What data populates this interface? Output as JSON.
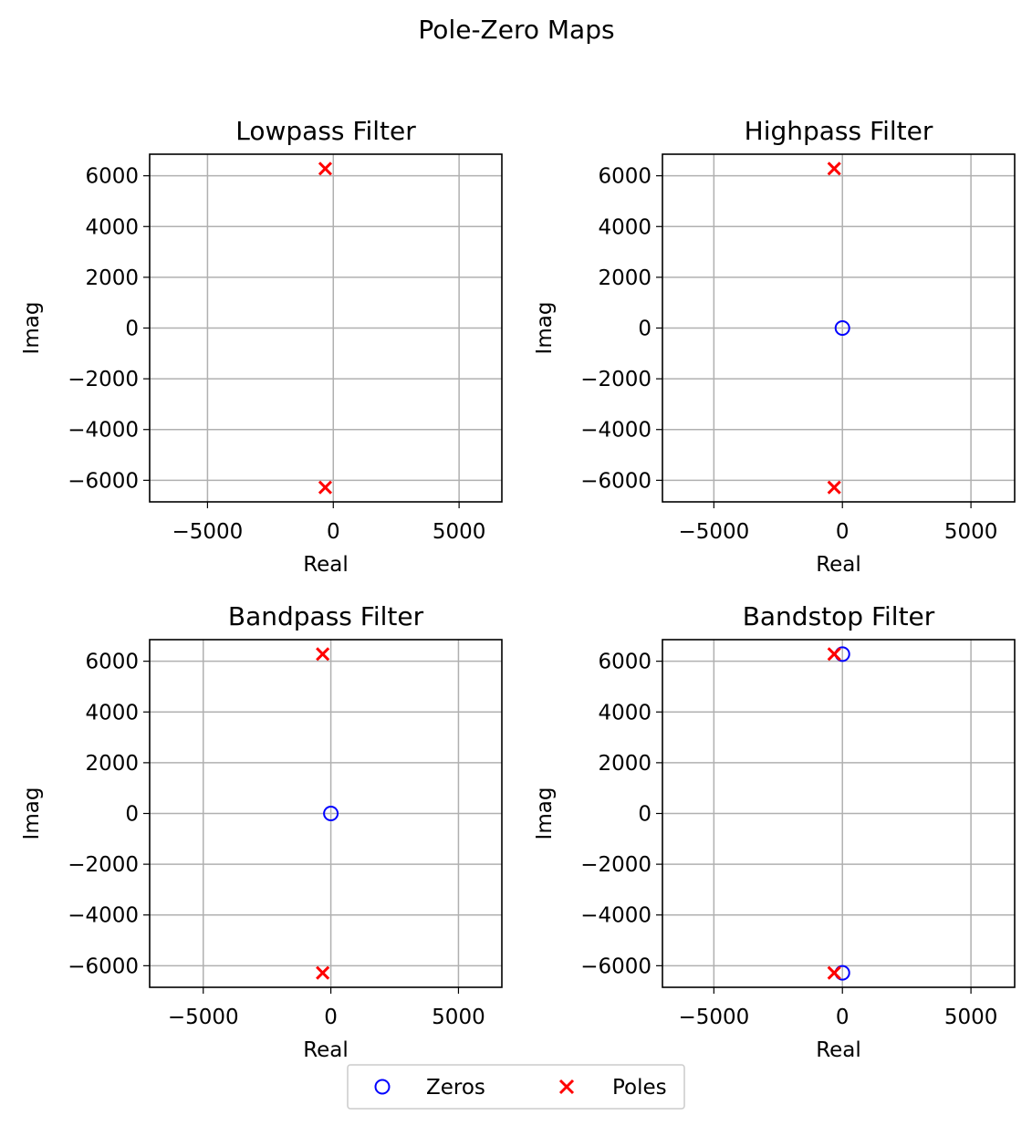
{
  "figure": {
    "title": "Pole-Zero Maps"
  },
  "legend": {
    "placement": "bottom-center",
    "entries": [
      {
        "label": "Zeros",
        "marker": "circle",
        "color": "#0000ff"
      },
      {
        "label": "Poles",
        "marker": "x",
        "color": "#ff0000"
      }
    ]
  },
  "colors": {
    "zeros": "#0000ff",
    "poles": "#ff0000",
    "grid": "#b0b0b0"
  },
  "chart_data": [
    {
      "type": "scatter",
      "title": "Lowpass Filter",
      "xlabel": "Real",
      "ylabel": "Imag",
      "xlim": [
        -7300,
        6700
      ],
      "ylim": [
        -6850,
        6850
      ],
      "xticks": [
        -5000,
        0,
        5000
      ],
      "xtick_labels": [
        "−5000",
        "0",
        "5000"
      ],
      "yticks": [
        6000,
        4000,
        2000,
        0,
        -2000,
        -4000,
        -6000
      ],
      "ytick_labels": [
        "6000",
        "4000",
        "2000",
        "0",
        "−2000",
        "−4000",
        "−6000"
      ],
      "grid": true,
      "series": [
        {
          "name": "Zeros",
          "points": []
        },
        {
          "name": "Poles",
          "points": [
            [
              -320,
              6280
            ],
            [
              -320,
              -6280
            ]
          ]
        }
      ]
    },
    {
      "type": "scatter",
      "title": "Highpass Filter",
      "xlabel": "Real",
      "ylabel": "Imag",
      "xlim": [
        -7000,
        6700
      ],
      "ylim": [
        -6850,
        6850
      ],
      "xticks": [
        -5000,
        0,
        5000
      ],
      "xtick_labels": [
        "−5000",
        "0",
        "5000"
      ],
      "yticks": [
        6000,
        4000,
        2000,
        0,
        -2000,
        -4000,
        -6000
      ],
      "ytick_labels": [
        "6000",
        "4000",
        "2000",
        "0",
        "−2000",
        "−4000",
        "−6000"
      ],
      "grid": true,
      "series": [
        {
          "name": "Zeros",
          "points": [
            [
              0,
              0
            ]
          ]
        },
        {
          "name": "Poles",
          "points": [
            [
              -320,
              6280
            ],
            [
              -320,
              -6280
            ]
          ]
        }
      ]
    },
    {
      "type": "scatter",
      "title": "Bandpass Filter",
      "xlabel": "Real",
      "ylabel": "Imag",
      "xlim": [
        -7100,
        6700
      ],
      "ylim": [
        -6850,
        6850
      ],
      "xticks": [
        -5000,
        0,
        5000
      ],
      "xtick_labels": [
        "−5000",
        "0",
        "5000"
      ],
      "yticks": [
        6000,
        4000,
        2000,
        0,
        -2000,
        -4000,
        -6000
      ],
      "ytick_labels": [
        "6000",
        "4000",
        "2000",
        "0",
        "−2000",
        "−4000",
        "−6000"
      ],
      "grid": true,
      "series": [
        {
          "name": "Zeros",
          "points": [
            [
              0,
              0
            ]
          ]
        },
        {
          "name": "Poles",
          "points": [
            [
              -320,
              6280
            ],
            [
              -320,
              -6280
            ]
          ]
        }
      ]
    },
    {
      "type": "scatter",
      "title": "Bandstop Filter",
      "xlabel": "Real",
      "ylabel": "Imag",
      "xlim": [
        -7000,
        6700
      ],
      "ylim": [
        -6850,
        6850
      ],
      "xticks": [
        -5000,
        0,
        5000
      ],
      "xtick_labels": [
        "−5000",
        "0",
        "5000"
      ],
      "yticks": [
        6000,
        4000,
        2000,
        0,
        -2000,
        -4000,
        -6000
      ],
      "ytick_labels": [
        "6000",
        "4000",
        "2000",
        "0",
        "−2000",
        "−4000",
        "−6000"
      ],
      "grid": true,
      "series": [
        {
          "name": "Zeros",
          "points": [
            [
              0,
              6280
            ],
            [
              0,
              -6280
            ]
          ]
        },
        {
          "name": "Poles",
          "points": [
            [
              -320,
              6280
            ],
            [
              -320,
              -6280
            ]
          ]
        }
      ]
    }
  ]
}
